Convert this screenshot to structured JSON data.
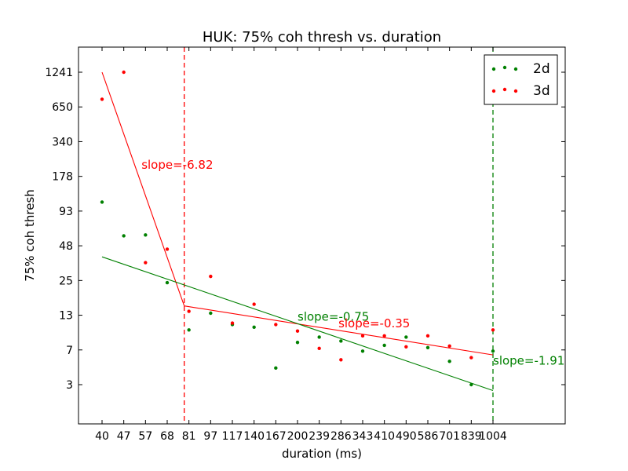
{
  "chart_data": {
    "type": "scatter",
    "title": "HUK: 75% coh thresh vs. duration",
    "xlabel": "duration (ms)",
    "ylabel": "75% coh thresh",
    "x_ticks": [
      "40",
      "47",
      "57",
      "68",
      "81",
      "97",
      "117",
      "140",
      "167",
      "200",
      "239",
      "286",
      "343",
      "410",
      "490",
      "586",
      "701",
      "839",
      "1004"
    ],
    "y_ticks": [
      "3",
      "7",
      "13",
      "25",
      "48",
      "93",
      "178",
      "340",
      "650",
      "1241"
    ],
    "grid": false,
    "legend_position": "top-right",
    "colors": {
      "2d": "#008000",
      "3d": "#ff0000"
    },
    "series": [
      {
        "name": "2d",
        "points": [
          {
            "x": 40,
            "y": 110
          },
          {
            "x": 47,
            "y": 58
          },
          {
            "x": 57,
            "y": 59
          },
          {
            "x": 68,
            "y": 24
          },
          {
            "x": 81,
            "y": 10
          },
          {
            "x": 97,
            "y": 13.5
          },
          {
            "x": 117,
            "y": 11
          },
          {
            "x": 140,
            "y": 10.5
          },
          {
            "x": 167,
            "y": 4.5
          },
          {
            "x": 200,
            "y": 8
          },
          {
            "x": 239,
            "y": 8.8
          },
          {
            "x": 286,
            "y": 8.2
          },
          {
            "x": 343,
            "y": 6.8
          },
          {
            "x": 410,
            "y": 7.6
          },
          {
            "x": 490,
            "y": 8.8
          },
          {
            "x": 586,
            "y": 7.3
          },
          {
            "x": 701,
            "y": 5.3
          },
          {
            "x": 839,
            "y": 3
          },
          {
            "x": 1004,
            "y": 6.8
          }
        ]
      },
      {
        "name": "3d",
        "points": [
          {
            "x": 40,
            "y": 750
          },
          {
            "x": 47,
            "y": 1241
          },
          {
            "x": 57,
            "y": 35
          },
          {
            "x": 68,
            "y": 45
          },
          {
            "x": 81,
            "y": 14
          },
          {
            "x": 97,
            "y": 27
          },
          {
            "x": 117,
            "y": 11.3
          },
          {
            "x": 140,
            "y": 16
          },
          {
            "x": 167,
            "y": 11
          },
          {
            "x": 200,
            "y": 9.8
          },
          {
            "x": 239,
            "y": 7.2
          },
          {
            "x": 286,
            "y": 5.5
          },
          {
            "x": 343,
            "y": 9
          },
          {
            "x": 410,
            "y": 9
          },
          {
            "x": 490,
            "y": 7.4
          },
          {
            "x": 586,
            "y": 9
          },
          {
            "x": 701,
            "y": 7.5
          },
          {
            "x": 839,
            "y": 5.8
          },
          {
            "x": 1004,
            "y": 10
          }
        ]
      }
    ],
    "fit_lines": [
      {
        "series": "3d",
        "from": {
          "x": 40,
          "y": 1241
        },
        "to": {
          "x": 78,
          "y": 15.5
        }
      },
      {
        "series": "3d",
        "from": {
          "x": 78,
          "y": 15.5
        },
        "to": {
          "x": 1004,
          "y": 6.2
        }
      },
      {
        "series": "2d",
        "from": {
          "x": 40,
          "y": 39
        },
        "to": {
          "x": 1004,
          "y": 2.6
        }
      }
    ],
    "vlines": [
      {
        "series": "3d",
        "x": 78
      },
      {
        "series": "2d",
        "x": 1004
      }
    ],
    "annotations": [
      {
        "text": "slope=-6.82",
        "series": "3d",
        "x": 55,
        "y": 205
      },
      {
        "text": "slope=-0.75",
        "series": "2d",
        "x": 200,
        "y": 11.8
      },
      {
        "text": "slope=-0.35",
        "series": "3d",
        "x": 280,
        "y": 10.5
      },
      {
        "text": "slope=-1.91",
        "series": "2d",
        "x": 1004,
        "y": 4.9
      }
    ]
  }
}
